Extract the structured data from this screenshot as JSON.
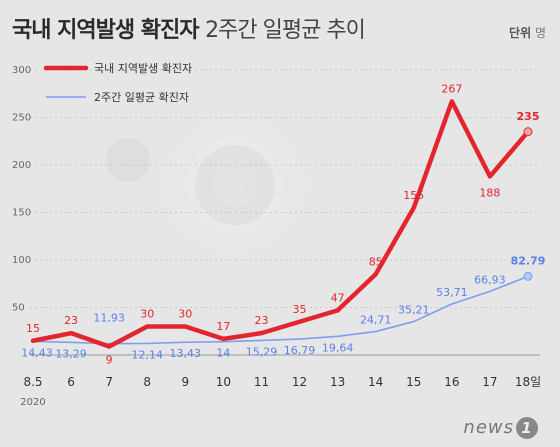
{
  "header": {
    "title_bold": "국내 지역발생 확진자",
    "title_light": "2주간 일평균 추이",
    "unit_label": "단위",
    "unit_value": "명"
  },
  "footer": {
    "logo_text": "news",
    "logo_badge": "1",
    "year_label": "2020"
  },
  "chart_data": {
    "type": "line",
    "categories": [
      "8.5",
      "6",
      "7",
      "8",
      "9",
      "10",
      "11",
      "12",
      "13",
      "14",
      "15",
      "16",
      "17",
      "18일"
    ],
    "ylim": [
      0,
      300
    ],
    "yticks": [
      50,
      100,
      150,
      200,
      250,
      300
    ],
    "grid": true,
    "legend_position": "top-left",
    "series": [
      {
        "name": "국내 지역발생 확진자",
        "color": "#e3262e",
        "values": [
          15,
          23,
          9,
          30,
          30,
          17,
          23,
          35,
          47,
          85,
          155,
          267,
          188,
          235
        ],
        "labels": [
          "15",
          "23",
          "9",
          "30",
          "30",
          "17",
          "23",
          "35",
          "47",
          "85",
          "155",
          "267",
          "188",
          "235"
        ]
      },
      {
        "name": "2주간 일평균 확진자",
        "color": "#7f9cf5",
        "values": [
          14.43,
          13.29,
          11.93,
          12.14,
          13.43,
          14,
          15.29,
          16.79,
          19.64,
          24.71,
          35.21,
          53.71,
          66.93,
          82.79
        ],
        "labels": [
          "14,43",
          "13,29",
          "11,93",
          "12,14",
          "13,43",
          "14",
          "15,29",
          "16,79",
          "19,64",
          "24,71",
          "35,21",
          "53,71",
          "66,93",
          "82.79"
        ]
      }
    ]
  }
}
